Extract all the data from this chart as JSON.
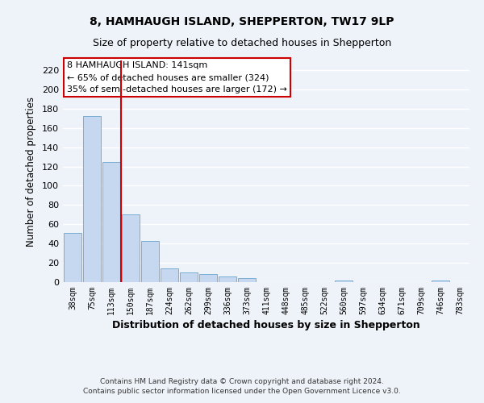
{
  "title": "8, HAMHAUGH ISLAND, SHEPPERTON, TW17 9LP",
  "subtitle": "Size of property relative to detached houses in Shepperton",
  "xlabel": "Distribution of detached houses by size in Shepperton",
  "ylabel": "Number of detached properties",
  "bar_labels": [
    "38sqm",
    "75sqm",
    "113sqm",
    "150sqm",
    "187sqm",
    "224sqm",
    "262sqm",
    "299sqm",
    "336sqm",
    "373sqm",
    "411sqm",
    "448sqm",
    "485sqm",
    "522sqm",
    "560sqm",
    "597sqm",
    "634sqm",
    "671sqm",
    "709sqm",
    "746sqm",
    "783sqm"
  ],
  "bar_values": [
    51,
    172,
    125,
    70,
    43,
    14,
    10,
    8,
    6,
    4,
    0,
    0,
    0,
    0,
    2,
    0,
    0,
    0,
    0,
    2,
    0
  ],
  "bar_color": "#c5d8f0",
  "bar_edge_color": "#7aaed6",
  "vline_color": "#cc0000",
  "annotation_title": "8 HAMHAUGH ISLAND: 141sqm",
  "annotation_line1": "← 65% of detached houses are smaller (324)",
  "annotation_line2": "35% of semi-detached houses are larger (172) →",
  "ylim": [
    0,
    230
  ],
  "yticks": [
    0,
    20,
    40,
    60,
    80,
    100,
    120,
    140,
    160,
    180,
    200,
    220
  ],
  "footer1": "Contains HM Land Registry data © Crown copyright and database right 2024.",
  "footer2": "Contains public sector information licensed under the Open Government Licence v3.0.",
  "bg_color": "#eef2f9",
  "plot_bg_color": "#eef2f9",
  "grid_color": "#ffffff",
  "title_fontsize": 10,
  "subtitle_fontsize": 9,
  "annotation_box_color": "#ffffff",
  "annotation_box_edge": "#cc0000",
  "vline_bar_index": 3
}
